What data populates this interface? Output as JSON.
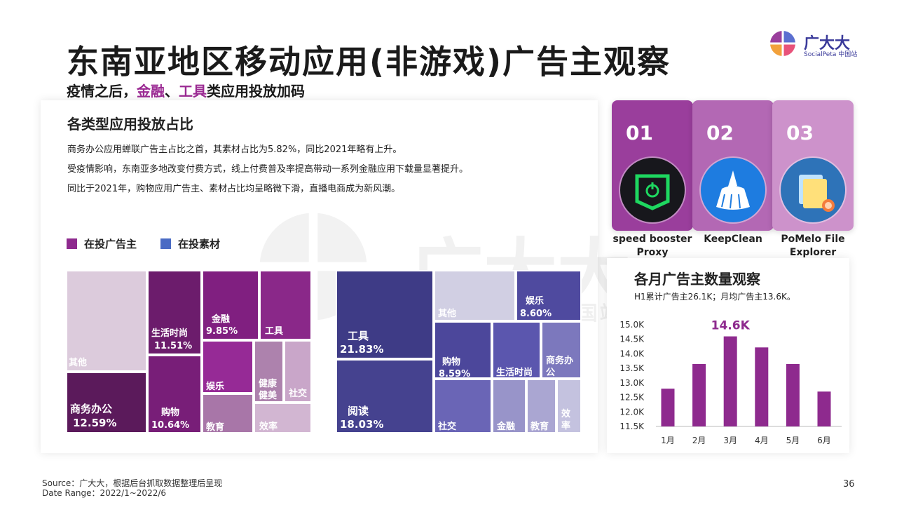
{
  "header": {
    "title": "东南亚地区移动应用(非游戏)广告主观察",
    "subtitle_part1": "疫情之后，",
    "subtitle_hl1": "金融",
    "subtitle_sep": "、",
    "subtitle_hl2": "工具",
    "subtitle_part2": "类应用投放加码"
  },
  "logo": {
    "name": "广大大",
    "sub": "SocialPeta 中国站"
  },
  "watermark": {
    "name": "广大大",
    "sub": "SocialPeta 中国站"
  },
  "left_panel": {
    "title": "各类型应用投放占比",
    "paragraphs": [
      "商务办公应用蝉联广告主占比之首，其素材占比为5.82%，同比2021年略有上升。",
      "受疫情影响，东南亚多地改变付费方式，线上付费普及率提高带动一系列金融应用下载量显著提升。",
      "同比于2021年，购物应用广告主、素材占比均呈略微下滑，直播电商成为新风潮。"
    ],
    "legend": [
      {
        "label": "在投广告主",
        "color": "#8e2a8e"
      },
      {
        "label": "在投素材",
        "color": "#4a6bc4"
      }
    ]
  },
  "rankings": [
    {
      "rank": "01",
      "name": "speed booster Proxy",
      "card_color": "#9a3e9c",
      "icon": "power-shield-icon"
    },
    {
      "rank": "02",
      "name": "KeepClean",
      "card_color": "#b368b4",
      "icon": "broom-icon"
    },
    {
      "rank": "03",
      "name": "PoMelo File Explorer",
      "card_color": "#cd92cb",
      "icon": "folder-icon"
    }
  ],
  "monthly_panel": {
    "title": "各月广告主数量观察",
    "note": "H1累计广告主26.1K；月均广告主13.6K。"
  },
  "footer": {
    "source": "Source：广大大，根据后台抓取数据整理后呈现",
    "date_range": "Date Range：2022/1~2022/6",
    "page": "36"
  },
  "chart_data": [
    {
      "type": "treemap",
      "title": "在投广告主",
      "cells": [
        {
          "name": "其他",
          "value": null,
          "label": "其他",
          "color": "#dccbdc"
        },
        {
          "name": "商务办公",
          "value": 12.59,
          "label": "12.59%",
          "color": "#5b1a5b"
        },
        {
          "name": "生活时尚",
          "value": 11.51,
          "label": "11.51%",
          "color": "#6c1c6c"
        },
        {
          "name": "购物",
          "value": 10.64,
          "label": "10.64%",
          "color": "#781e78"
        },
        {
          "name": "金融",
          "value": 9.85,
          "label": "9.85%",
          "color": "#801f80"
        },
        {
          "name": "工具",
          "value": null,
          "label": "",
          "color": "#8a2889"
        },
        {
          "name": "娱乐",
          "value": null,
          "label": "",
          "color": "#962a96"
        },
        {
          "name": "健康健美",
          "value": null,
          "label": "",
          "color": "#ad82ad"
        },
        {
          "name": "社交",
          "value": null,
          "label": "",
          "color": "#c9a6c9"
        },
        {
          "name": "教育",
          "value": null,
          "label": "",
          "color": "#a876a8"
        },
        {
          "name": "效率",
          "value": null,
          "label": "",
          "color": "#d2b6d2"
        }
      ]
    },
    {
      "type": "treemap",
      "title": "在投素材",
      "cells": [
        {
          "name": "工具",
          "value": 21.83,
          "label": "21.83%",
          "color": "#3e3b86"
        },
        {
          "name": "阅读",
          "value": 18.03,
          "label": "18.03%",
          "color": "#45428f"
        },
        {
          "name": "其他",
          "value": null,
          "label": "",
          "color": "#d1cfe3"
        },
        {
          "name": "娱乐",
          "value": 8.6,
          "label": "8.60%",
          "color": "#4f4a9f"
        },
        {
          "name": "购物",
          "value": 8.59,
          "label": "8.59%",
          "color": "#4c479b"
        },
        {
          "name": "生活时尚",
          "value": null,
          "label": "",
          "color": "#5b56ae"
        },
        {
          "name": "商务办公",
          "value": null,
          "label": "",
          "color": "#7c78bd"
        },
        {
          "name": "社交",
          "value": null,
          "label": "",
          "color": "#6a65b6"
        },
        {
          "name": "金融",
          "value": null,
          "label": "",
          "color": "#9894c9"
        },
        {
          "name": "教育",
          "value": null,
          "label": "",
          "color": "#aaa6d2"
        },
        {
          "name": "效率",
          "value": null,
          "label": "",
          "color": "#c4c2df"
        }
      ]
    },
    {
      "type": "bar",
      "title": "各月广告主数量观察",
      "categories": [
        "1月",
        "2月",
        "3月",
        "4月",
        "5月",
        "6月"
      ],
      "values": [
        12.8,
        13.65,
        14.6,
        14.22,
        13.65,
        12.7
      ],
      "ylim": [
        11.5,
        15.0
      ],
      "yticks": [
        "15.0K",
        "14.5K",
        "14.0K",
        "13.5K",
        "13.0K",
        "12.5K",
        "12.0K",
        "11.5K"
      ],
      "ytick_values": [
        15.0,
        14.5,
        14.0,
        13.5,
        13.0,
        12.5,
        12.0,
        11.5
      ],
      "annotation": {
        "category": "3月",
        "text": "14.6K"
      },
      "bar_color": "#8e2a8e",
      "grid": false
    }
  ]
}
